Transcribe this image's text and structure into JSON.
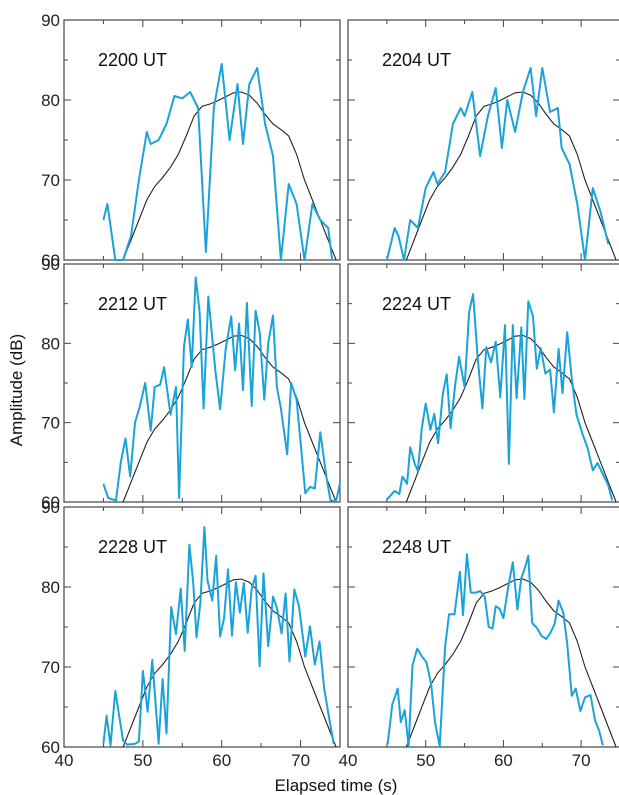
{
  "chart_data": {
    "type": "line",
    "xlabel": "Elapsed time (s)",
    "ylabel": "Amplitude (dB)",
    "xlim": [
      40,
      75
    ],
    "ylim": [
      60,
      90
    ],
    "x_ticks": [
      "40",
      "50",
      "60",
      "70"
    ],
    "y_ticks": [
      "60",
      "70",
      "80",
      "90"
    ],
    "colors": {
      "measured": "#1aa3d9",
      "model": "#222222"
    },
    "model_curve": [
      [
        47.5,
        60.0
      ],
      [
        48.5,
        62.5
      ],
      [
        49.5,
        65.0
      ],
      [
        50.5,
        67.5
      ],
      [
        51.5,
        69.2
      ],
      [
        52.5,
        70.3
      ],
      [
        53.5,
        71.6
      ],
      [
        54.5,
        73.2
      ],
      [
        55.5,
        75.5
      ],
      [
        56.5,
        78.0
      ],
      [
        57.5,
        79.2
      ],
      [
        58.5,
        79.5
      ],
      [
        59.5,
        79.9
      ],
      [
        60.5,
        80.4
      ],
      [
        61.5,
        80.9
      ],
      [
        62.5,
        81.0
      ],
      [
        63.5,
        80.6
      ],
      [
        64.5,
        79.6
      ],
      [
        65.5,
        78.2
      ],
      [
        66.5,
        77.0
      ],
      [
        67.5,
        76.3
      ],
      [
        68.5,
        75.5
      ],
      [
        69.5,
        73.2
      ],
      [
        70.5,
        70.0
      ],
      [
        71.5,
        67.5
      ],
      [
        72.5,
        65.0
      ],
      [
        73.5,
        62.5
      ],
      [
        74.5,
        60.0
      ]
    ],
    "panels": [
      {
        "label": "2200 UT",
        "measured": [
          [
            45,
            65
          ],
          [
            45.5,
            67
          ],
          [
            46.5,
            60
          ],
          [
            47.5,
            60
          ],
          [
            48.5,
            63
          ],
          [
            49.5,
            70
          ],
          [
            50.5,
            76
          ],
          [
            51,
            74.5
          ],
          [
            52,
            75
          ],
          [
            53,
            77
          ],
          [
            54,
            80.5
          ],
          [
            55,
            80.2
          ],
          [
            56,
            81
          ],
          [
            57,
            79
          ],
          [
            58,
            61
          ],
          [
            59,
            79
          ],
          [
            60,
            84.5
          ],
          [
            61,
            75
          ],
          [
            62,
            82
          ],
          [
            62.7,
            74.5
          ],
          [
            63.5,
            82
          ],
          [
            64.5,
            84
          ],
          [
            65.5,
            77
          ],
          [
            66.5,
            73
          ],
          [
            67.5,
            60
          ],
          [
            68.5,
            69.5
          ],
          [
            69.5,
            67
          ],
          [
            70.5,
            60
          ],
          [
            71.5,
            67
          ],
          [
            72.5,
            65
          ],
          [
            73.5,
            64
          ],
          [
            74,
            60
          ]
        ]
      },
      {
        "label": "2204 UT",
        "measured": [
          [
            45,
            60
          ],
          [
            46,
            64
          ],
          [
            46.5,
            63
          ],
          [
            47.2,
            60
          ],
          [
            48,
            65
          ],
          [
            49,
            64
          ],
          [
            50,
            69
          ],
          [
            51,
            71
          ],
          [
            51.5,
            69.5
          ],
          [
            52.5,
            71
          ],
          [
            53.5,
            77
          ],
          [
            54.5,
            79
          ],
          [
            55,
            78
          ],
          [
            56,
            81
          ],
          [
            57,
            73
          ],
          [
            58,
            78
          ],
          [
            59,
            81.5
          ],
          [
            59.8,
            74
          ],
          [
            60.5,
            80
          ],
          [
            61.5,
            76
          ],
          [
            62.5,
            81
          ],
          [
            63.5,
            84
          ],
          [
            64.2,
            78
          ],
          [
            65,
            84
          ],
          [
            66,
            78.5
          ],
          [
            67,
            79
          ],
          [
            67.5,
            74
          ],
          [
            68.5,
            72
          ],
          [
            69.5,
            67
          ],
          [
            70.5,
            60
          ],
          [
            71.5,
            69
          ],
          [
            72.5,
            66
          ],
          [
            73.5,
            62
          ]
        ]
      },
      {
        "label": "2212 UT",
        "measured": [
          [
            45,
            62.3
          ],
          [
            45.6,
            60.5
          ],
          [
            46.6,
            60.2
          ],
          [
            47.2,
            65
          ],
          [
            47.8,
            68
          ],
          [
            48.4,
            63.2
          ],
          [
            49,
            70
          ],
          [
            49.6,
            72
          ],
          [
            50.3,
            75
          ],
          [
            51,
            69
          ],
          [
            51.5,
            74.5
          ],
          [
            52.2,
            74.8
          ],
          [
            52.7,
            77
          ],
          [
            53.5,
            71
          ],
          [
            54.2,
            74.5
          ],
          [
            54.6,
            60.5
          ],
          [
            55.2,
            79.5
          ],
          [
            55.7,
            83
          ],
          [
            56.2,
            77
          ],
          [
            56.7,
            88.3
          ],
          [
            57.2,
            84
          ],
          [
            57.7,
            71.8
          ],
          [
            58.3,
            85.9
          ],
          [
            59.2,
            76.5
          ],
          [
            59.8,
            71.7
          ],
          [
            60.5,
            79.3
          ],
          [
            61.2,
            83.4
          ],
          [
            61.7,
            76.6
          ],
          [
            62.2,
            82.5
          ],
          [
            62.7,
            74.1
          ],
          [
            63.2,
            85.1
          ],
          [
            63.8,
            72.1
          ],
          [
            64.3,
            84.1
          ],
          [
            64.8,
            81.5
          ],
          [
            65.4,
            72.9
          ],
          [
            65.9,
            80
          ],
          [
            66.5,
            83.5
          ],
          [
            67,
            74.5
          ],
          [
            67.5,
            71.8
          ],
          [
            68.3,
            66
          ],
          [
            68.8,
            75
          ],
          [
            69.5,
            72.9
          ],
          [
            70,
            67.5
          ],
          [
            70.6,
            61.1
          ],
          [
            71.2,
            61.9
          ],
          [
            71.8,
            61.7
          ],
          [
            72.5,
            68.8
          ],
          [
            73.3,
            63
          ],
          [
            73.8,
            60.2
          ],
          [
            74.5,
            60.1
          ],
          [
            75,
            62.4
          ]
        ]
      },
      {
        "label": "2224 UT",
        "measured": [
          [
            45,
            60.3
          ],
          [
            46,
            61.4
          ],
          [
            46.6,
            61
          ],
          [
            47,
            63.2
          ],
          [
            47.6,
            62.3
          ],
          [
            48,
            66.9
          ],
          [
            48.6,
            64.8
          ],
          [
            49,
            63.9
          ],
          [
            49.5,
            69.3
          ],
          [
            50,
            72.4
          ],
          [
            50.6,
            69.1
          ],
          [
            51.1,
            71.1
          ],
          [
            51.6,
            67.4
          ],
          [
            52.2,
            73.6
          ],
          [
            52.7,
            76.1
          ],
          [
            53.2,
            69.3
          ],
          [
            53.8,
            74.8
          ],
          [
            54.3,
            78.3
          ],
          [
            55,
            74.5
          ],
          [
            55.6,
            84
          ],
          [
            56.1,
            86.2
          ],
          [
            56.7,
            78
          ],
          [
            57.3,
            71.8
          ],
          [
            57.8,
            79.5
          ],
          [
            58.4,
            77.6
          ],
          [
            59,
            80.2
          ],
          [
            59.6,
            73.2
          ],
          [
            60.2,
            82.3
          ],
          [
            60.7,
            64.8
          ],
          [
            61.2,
            82.3
          ],
          [
            61.7,
            73.1
          ],
          [
            62.3,
            82
          ],
          [
            62.7,
            73
          ],
          [
            63.2,
            85.3
          ],
          [
            63.8,
            83.4
          ],
          [
            64.3,
            76.8
          ],
          [
            64.8,
            79.4
          ],
          [
            65.4,
            76.2
          ],
          [
            66,
            76.7
          ],
          [
            66.5,
            71.3
          ],
          [
            67.1,
            79.3
          ],
          [
            67.6,
            73.7
          ],
          [
            68.2,
            81.4
          ],
          [
            68.8,
            75.5
          ],
          [
            69.4,
            71
          ],
          [
            70.2,
            68.5
          ],
          [
            70.8,
            66.9
          ],
          [
            71.5,
            64
          ],
          [
            72.1,
            64.9
          ],
          [
            73.5,
            62.1
          ],
          [
            74,
            60.2
          ]
        ]
      },
      {
        "label": "2228 UT",
        "measured": [
          [
            45,
            60.4
          ],
          [
            45.4,
            63.9
          ],
          [
            45.9,
            60.2
          ],
          [
            46.5,
            67
          ],
          [
            47.5,
            60.8
          ],
          [
            48,
            60.3
          ],
          [
            49,
            60.4
          ],
          [
            49.5,
            60.7
          ],
          [
            50,
            69.5
          ],
          [
            50.6,
            64.4
          ],
          [
            51.2,
            70.9
          ],
          [
            52,
            60.4
          ],
          [
            52.5,
            68.5
          ],
          [
            53,
            61.7
          ],
          [
            53.6,
            77.5
          ],
          [
            54.2,
            74.1
          ],
          [
            54.8,
            79.8
          ],
          [
            55.3,
            72
          ],
          [
            55.9,
            85.3
          ],
          [
            56.4,
            80.4
          ],
          [
            56.8,
            73.7
          ],
          [
            57.3,
            78.1
          ],
          [
            57.8,
            87.5
          ],
          [
            58.2,
            80.8
          ],
          [
            58.8,
            78.3
          ],
          [
            59.3,
            83.9
          ],
          [
            59.8,
            73.8
          ],
          [
            60.3,
            76.1
          ],
          [
            60.8,
            82.2
          ],
          [
            61.3,
            73.9
          ],
          [
            61.8,
            80.6
          ],
          [
            62.3,
            76.8
          ],
          [
            62.8,
            80.5
          ],
          [
            63.3,
            74.3
          ],
          [
            63.8,
            79.8
          ],
          [
            64.3,
            81.4
          ],
          [
            64.8,
            70.1
          ],
          [
            65.3,
            81.7
          ],
          [
            65.9,
            72.6
          ],
          [
            66.5,
            78.8
          ],
          [
            67,
            77.4
          ],
          [
            67.6,
            74.2
          ],
          [
            68.1,
            79.2
          ],
          [
            68.6,
            70.7
          ],
          [
            69.2,
            79.7
          ],
          [
            69.8,
            77.6
          ],
          [
            70.6,
            71.3
          ],
          [
            71.2,
            75.1
          ],
          [
            71.8,
            70.3
          ],
          [
            72.4,
            73.2
          ],
          [
            73,
            67.3
          ],
          [
            73.7,
            63.2
          ],
          [
            74.2,
            60.4
          ]
        ]
      },
      {
        "label": "2248 UT",
        "measured": [
          [
            45.1,
            60.3
          ],
          [
            45.7,
            65.3
          ],
          [
            46.4,
            67.3
          ],
          [
            46.8,
            63.1
          ],
          [
            47.3,
            64.6
          ],
          [
            47.8,
            60.1
          ],
          [
            48.3,
            70.2
          ],
          [
            48.9,
            72.3
          ],
          [
            49.6,
            71.2
          ],
          [
            50.1,
            70.6
          ],
          [
            50.7,
            67.8
          ],
          [
            51.2,
            63.1
          ],
          [
            51.8,
            60.1
          ],
          [
            52.5,
            72.5
          ],
          [
            53,
            76.6
          ],
          [
            53.7,
            76.6
          ],
          [
            54.4,
            81.9
          ],
          [
            54.8,
            76.5
          ],
          [
            55.3,
            84.1
          ],
          [
            55.8,
            79.3
          ],
          [
            56.5,
            79.3
          ],
          [
            57,
            79.5
          ],
          [
            57.6,
            78.8
          ],
          [
            58.1,
            75
          ],
          [
            58.6,
            74.8
          ],
          [
            59,
            77.6
          ],
          [
            59.5,
            77.3
          ],
          [
            60,
            76.1
          ],
          [
            60.6,
            79.9
          ],
          [
            61.2,
            83.1
          ],
          [
            61.8,
            77.2
          ],
          [
            62.3,
            81.1
          ],
          [
            62.8,
            82.5
          ],
          [
            63.2,
            83.9
          ],
          [
            63.7,
            75.5
          ],
          [
            64.3,
            74.9
          ],
          [
            64.9,
            73.9
          ],
          [
            65.5,
            73.5
          ],
          [
            66,
            74.2
          ],
          [
            66.6,
            75.4
          ],
          [
            67.1,
            78.3
          ],
          [
            67.7,
            76.8
          ],
          [
            68.2,
            72.9
          ],
          [
            68.8,
            66.4
          ],
          [
            69.3,
            67.3
          ],
          [
            69.9,
            64.5
          ],
          [
            70.5,
            66.2
          ],
          [
            71.2,
            66.5
          ],
          [
            71.8,
            63.3
          ],
          [
            72.3,
            62.1
          ],
          [
            72.8,
            60.2
          ]
        ]
      }
    ]
  }
}
